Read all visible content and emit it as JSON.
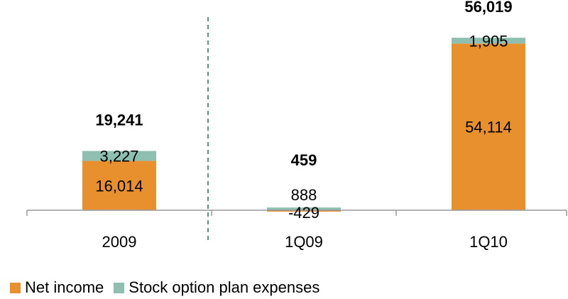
{
  "chart_data": {
    "type": "bar",
    "stacked": true,
    "categories": [
      "2009",
      "1Q09",
      "1Q10"
    ],
    "series": [
      {
        "name": "Net income",
        "color": "#E8902E",
        "values": [
          16014,
          -429,
          54114
        ],
        "labels": [
          "16,014",
          "-429",
          "54,114"
        ]
      },
      {
        "name": "Stock option plan expenses",
        "color": "#8FBFB0",
        "values": [
          3227,
          888,
          1905
        ],
        "labels": [
          "3,227",
          "888",
          "1,905"
        ]
      }
    ],
    "totals": [
      "19,241",
      "459",
      "56,019"
    ],
    "ylim": [
      -1000,
      60000
    ],
    "separator": "dashed vertical line between 2009 and 1Q09",
    "legend_position": "bottom-left",
    "grid": false
  }
}
